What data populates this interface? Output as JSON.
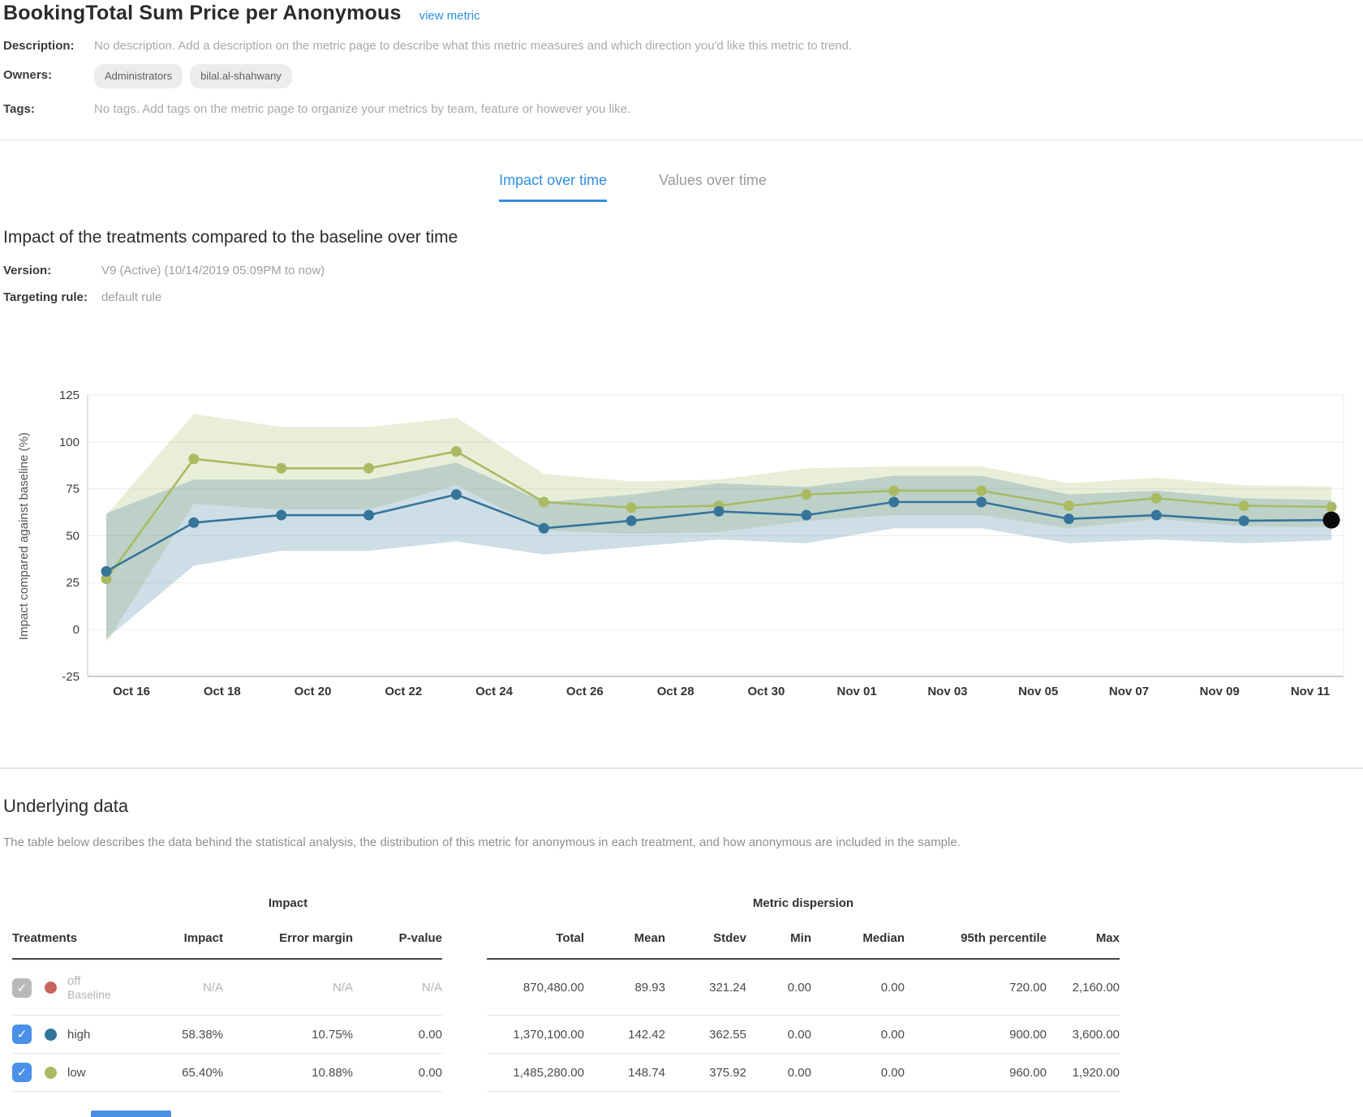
{
  "header": {
    "title": "BookingTotal Sum Price per Anonymous",
    "view_metric_link": "view metric",
    "description_label": "Description:",
    "description_value": "No description. Add a description on the metric page to describe what this metric measures and which direction you'd like this metric to trend.",
    "owners_label": "Owners:",
    "owners": [
      "Administrators",
      "bilal.al-shahwany"
    ],
    "tags_label": "Tags:",
    "tags_value": "No tags. Add tags on the metric page to organize your metrics by team, feature or however you like."
  },
  "tabs": [
    {
      "label": "Impact over time",
      "active": true
    },
    {
      "label": "Values over time",
      "active": false
    }
  ],
  "impact_section": {
    "heading": "Impact of the treatments compared to the baseline over time",
    "version_label": "Version:",
    "version_value": "V9 (Active) (10/14/2019 05:09PM to now)",
    "targeting_rule_label": "Targeting rule:",
    "targeting_rule_value": "default rule"
  },
  "chart_data": {
    "type": "line",
    "title": "",
    "xlabel": "",
    "ylabel": "Impact compared against baseline (%)",
    "ylim": [
      -25,
      125
    ],
    "yticks": [
      125,
      100,
      75,
      50,
      25,
      0,
      -25
    ],
    "grid": true,
    "legend_position": "none",
    "x_axis_labels": [
      "Oct 16",
      "Oct 18",
      "Oct 20",
      "Oct 22",
      "Oct 24",
      "Oct 26",
      "Oct 28",
      "Oct 30",
      "Nov 01",
      "Nov 03",
      "Nov 05",
      "Nov 07",
      "Nov 09",
      "Nov 11"
    ],
    "dates": [
      "Oct 15",
      "Oct 17",
      "Oct 19",
      "Oct 21",
      "Oct 23",
      "Oct 25",
      "Oct 27",
      "Oct 29",
      "Oct 31",
      "Nov 02",
      "Nov 04",
      "Nov 06",
      "Nov 08",
      "Nov 10",
      "Nov 11 (latest)"
    ],
    "series": [
      {
        "name": "high",
        "color": "#36749a",
        "band_color": "rgba(58,122,156,0.25)",
        "values": [
          31,
          57,
          61,
          61,
          72,
          54,
          58,
          63,
          61,
          68,
          68,
          59,
          61,
          58,
          58.38
        ],
        "upper": [
          62,
          80,
          80,
          80,
          89,
          68,
          72,
          78,
          76,
          82,
          82,
          72,
          74,
          70,
          69.1
        ],
        "lower": [
          -5,
          34,
          42,
          42,
          47,
          40,
          44,
          48,
          46,
          54,
          54,
          46,
          48,
          46,
          47.6
        ]
      },
      {
        "name": "low",
        "color": "#a9ba62",
        "band_color": "rgba(169,186,98,0.25)",
        "values": [
          27,
          91,
          86,
          86,
          95,
          68,
          65,
          66,
          72,
          74,
          74,
          66,
          70,
          66,
          65.4
        ],
        "upper": [
          61,
          115,
          108,
          108,
          113,
          83,
          79,
          80,
          86,
          87,
          87,
          78,
          81,
          77,
          76.3
        ],
        "lower": [
          -7,
          67,
          64,
          64,
          77,
          53,
          51,
          52,
          58,
          61,
          61,
          54,
          59,
          55,
          54.5
        ]
      }
    ],
    "latest_point": {
      "series": "high",
      "index": 14,
      "color": "#0a0a0a"
    }
  },
  "underlying_data": {
    "heading": "Underlying data",
    "description": "The table below describes the data behind the statistical analysis, the distribution of this metric for anonymous in each treatment, and how anonymous are included in the sample.",
    "table": {
      "group_impact": "Impact",
      "group_dispersion": "Metric dispersion",
      "columns": [
        "Treatments",
        "Impact",
        "Error margin",
        "P-value",
        "Total",
        "Mean",
        "Stdev",
        "Min",
        "Median",
        "95th percentile",
        "Max"
      ],
      "rows": [
        {
          "treatment": "off",
          "sub_label": "Baseline",
          "checked": true,
          "disabled": true,
          "dot_color": "#c9655c",
          "checkbox_color": "#b9b9b9",
          "impact": "N/A",
          "error_margin": "N/A",
          "p_value": "N/A",
          "total": "870,480.00",
          "mean": "89.93",
          "stdev": "321.24",
          "min": "0.00",
          "median": "0.00",
          "p95": "720.00",
          "max": "2,160.00"
        },
        {
          "treatment": "high",
          "sub_label": "",
          "checked": true,
          "disabled": false,
          "dot_color": "#36749a",
          "checkbox_color": "#4a8fe8",
          "impact": "58.38%",
          "error_margin": "10.75%",
          "p_value": "0.00",
          "total": "1,370,100.00",
          "mean": "142.42",
          "stdev": "362.55",
          "min": "0.00",
          "median": "0.00",
          "p95": "900.00",
          "max": "3,600.00"
        },
        {
          "treatment": "low",
          "sub_label": "",
          "checked": true,
          "disabled": false,
          "dot_color": "#a9ba62",
          "checkbox_color": "#4a8fe8",
          "impact": "65.40%",
          "error_margin": "10.88%",
          "p_value": "0.00",
          "total": "1,485,280.00",
          "mean": "148.74",
          "stdev": "375.92",
          "min": "0.00",
          "median": "0.00",
          "p95": "960.00",
          "max": "1,920.00"
        }
      ]
    }
  },
  "colors": {
    "link_blue": "#2e8ede",
    "tab_active": "#2f8fdf",
    "grid_line": "#ececec",
    "axis_line": "#c2c2c2",
    "tick_text": "#3d3d3d",
    "check_glyph": "✓"
  }
}
